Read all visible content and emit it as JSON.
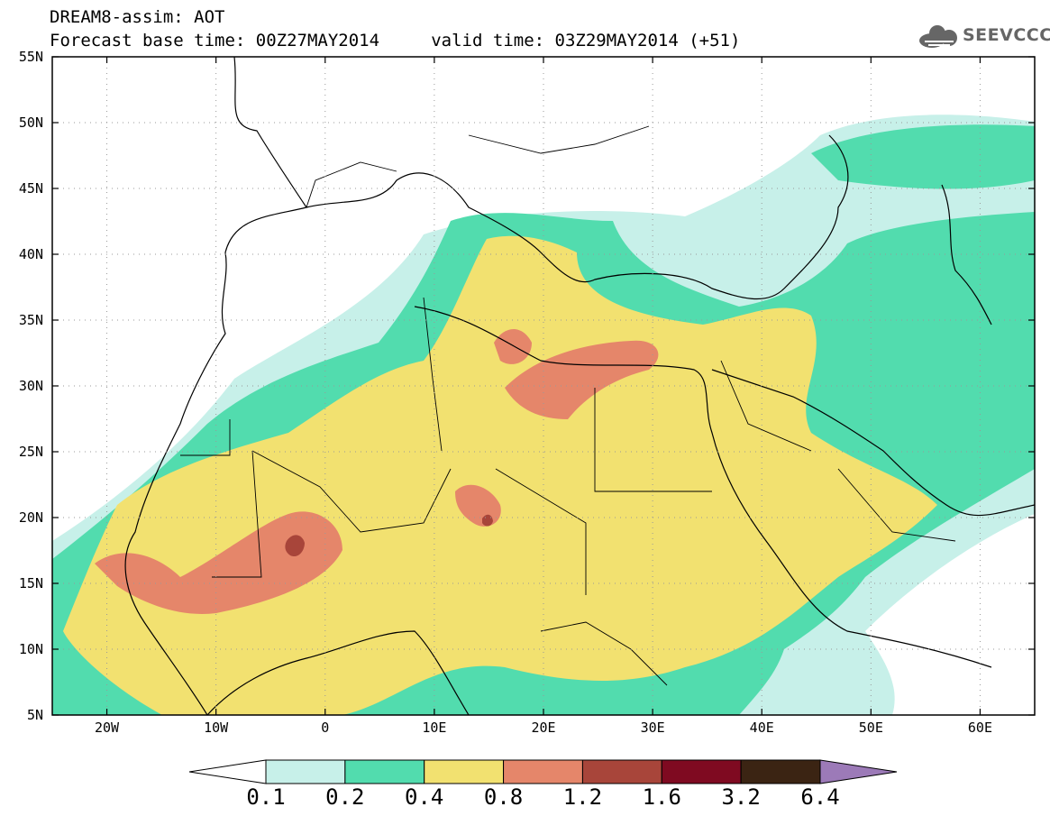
{
  "header": {
    "line1": "DREAM8-assim: AOT",
    "line2": "Forecast base time: 00Z27MAY2014     valid time: 03Z29MAY2014 (+51)"
  },
  "logo": {
    "text": "SEEVCCC",
    "icon": "cloud-icon"
  },
  "axes": {
    "lat_labels": [
      "55N",
      "50N",
      "45N",
      "40N",
      "35N",
      "30N",
      "25N",
      "20N",
      "15N",
      "10N",
      "5N"
    ],
    "lon_labels": [
      "20W",
      "10W",
      "0",
      "10E",
      "20E",
      "30E",
      "40E",
      "50E",
      "60E"
    ],
    "lat_range": [
      5,
      55
    ],
    "lon_range": [
      -25,
      65
    ]
  },
  "colorbar": {
    "labels": [
      "0.1",
      "0.2",
      "0.4",
      "0.8",
      "1.2",
      "1.6",
      "3.2",
      "6.4"
    ],
    "colors": [
      "#ffffff",
      "#c7f0e9",
      "#52dcae",
      "#f2e170",
      "#e5866a",
      "#a8453a",
      "#7f0a21",
      "#3b2413",
      "#9c7ab8"
    ]
  }
}
